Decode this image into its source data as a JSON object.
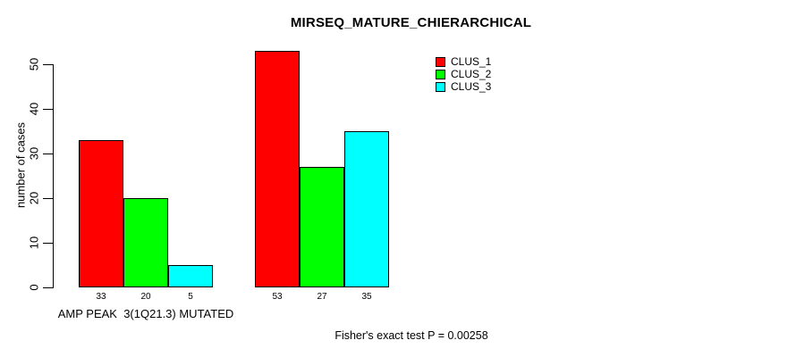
{
  "chart_data": {
    "type": "bar",
    "title": "MIRSEQ_MATURE_CHIERARCHICAL",
    "xlabel": "",
    "ylabel": "number of cases",
    "ylim": [
      0,
      50
    ],
    "yticks": [
      0,
      10,
      20,
      30,
      40,
      50
    ],
    "grid": false,
    "legend_position": "top-right",
    "categories": [
      "AMP PEAK  3(1Q21.3) MUTATED",
      ""
    ],
    "series": [
      {
        "name": "CLUS_1",
        "color": "#FF0000",
        "values": [
          33,
          53
        ]
      },
      {
        "name": "CLUS_2",
        "color": "#00FF00",
        "values": [
          20,
          27
        ]
      },
      {
        "name": "CLUS_3",
        "color": "#00FFFF",
        "values": [
          5,
          35
        ]
      }
    ],
    "bar_value_labels": [
      [
        33,
        20,
        5
      ],
      [
        53,
        27,
        35
      ]
    ],
    "annotation": "Fisher's exact test P = 0.00258"
  }
}
